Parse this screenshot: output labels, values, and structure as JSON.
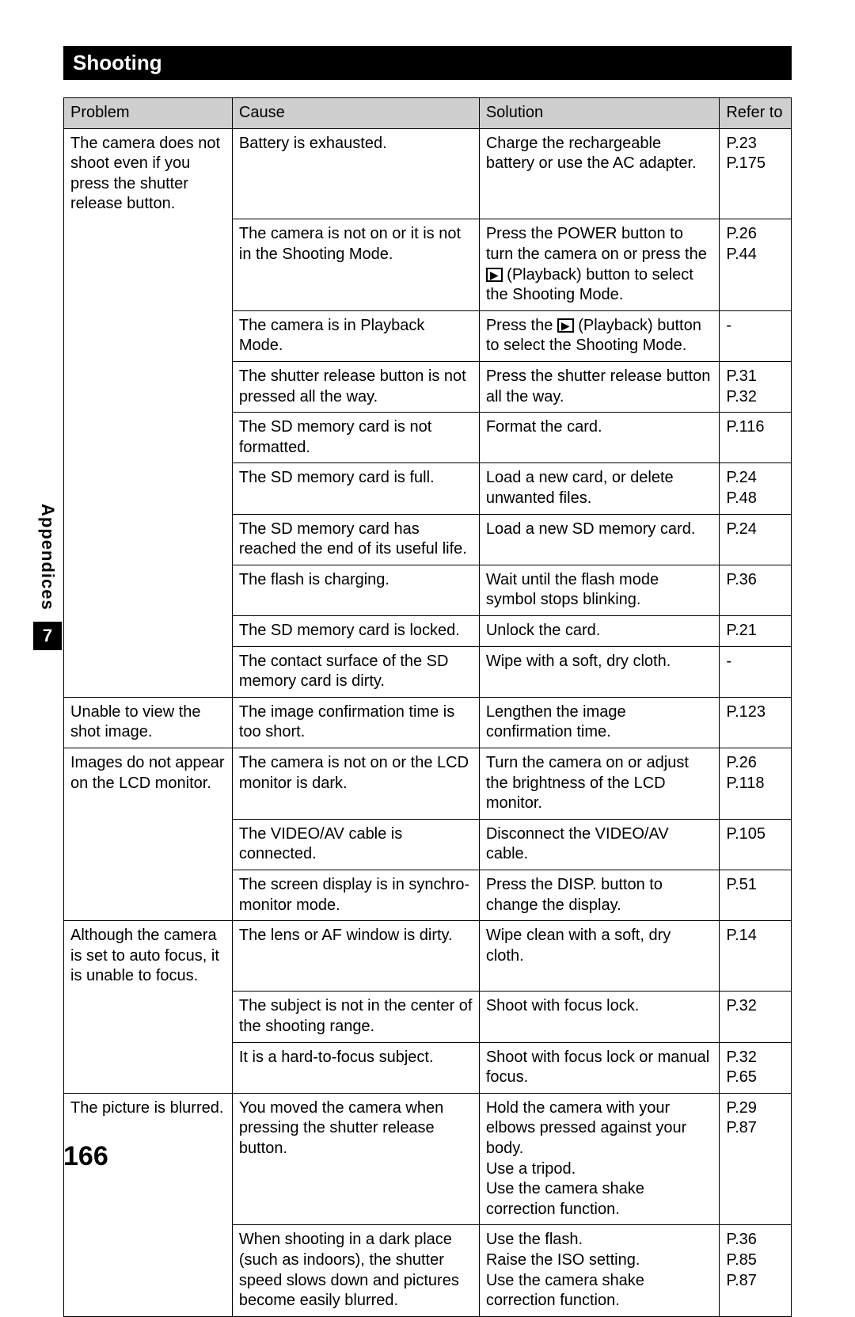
{
  "section_title": "Shooting",
  "side_tab": {
    "label": "Appendices",
    "number": "7"
  },
  "page_number": "166",
  "headers": {
    "problem": "Problem",
    "cause": "Cause",
    "solution": "Solution",
    "refer": "Refer to"
  },
  "col_widths": {
    "c1": 202,
    "c2": 296,
    "c3": 288,
    "c4": 86
  },
  "groups": [
    {
      "problem": "The camera does not shoot even if you press the shutter release button.",
      "rows": [
        {
          "cause": "Battery is exhausted.",
          "solution": "Charge the rechargeable battery or use the AC adapter.",
          "refer": "P.23\nP.175"
        },
        {
          "cause": "The camera is not on or it is not in the Shooting Mode.",
          "solution_pre": "Press the POWER button to turn the camera on or press the ",
          "solution_icon": "▶",
          "solution_post": " (Playback) button to select the Shooting Mode.",
          "refer": "P.26\nP.44"
        },
        {
          "cause": "The camera is in Playback Mode.",
          "solution_pre": "Press the ",
          "solution_icon": "▶",
          "solution_post": " (Playback) button to select the Shooting Mode.",
          "refer": "-"
        },
        {
          "cause": "The shutter release button is not pressed all the way.",
          "solution": "Press the shutter release button all the way.",
          "refer": "P.31\nP.32"
        },
        {
          "cause": "The SD memory card is not formatted.",
          "solution": "Format the card.",
          "refer": "P.116"
        },
        {
          "cause": "The SD memory card is full.",
          "solution": "Load a new card, or delete unwanted files.",
          "refer": "P.24\nP.48"
        },
        {
          "cause": "The SD memory card has reached the end of its useful life.",
          "solution": "Load a new SD memory card.",
          "refer": "P.24"
        },
        {
          "cause": "The flash is charging.",
          "solution": "Wait until the flash mode symbol stops blinking.",
          "refer": "P.36"
        },
        {
          "cause": "The SD memory card is locked.",
          "solution": "Unlock the card.",
          "refer": "P.21"
        },
        {
          "cause": "The contact surface of the SD memory card is dirty.",
          "solution": "Wipe with a soft, dry cloth.",
          "refer": "-"
        }
      ]
    },
    {
      "problem": "Unable to view the shot image.",
      "rows": [
        {
          "cause": "The image confirmation time is too short.",
          "solution": "Lengthen the image confirmation time.",
          "refer": "P.123"
        }
      ]
    },
    {
      "problem": "Images do not appear on the LCD monitor.",
      "rows": [
        {
          "cause": "The camera is not on or the LCD monitor is dark.",
          "solution": "Turn the camera on or adjust the brightness of the LCD monitor.",
          "refer": "P.26\nP.118"
        },
        {
          "cause": "The VIDEO/AV cable is connected.",
          "solution": "Disconnect the VIDEO/AV cable.",
          "refer": "P.105"
        },
        {
          "cause": "The screen display is in synchro-monitor mode.",
          "solution": "Press the DISP. button to change the display.",
          "refer": "P.51"
        }
      ]
    },
    {
      "problem": "Although the camera is set to auto focus, it is unable to focus.",
      "rows": [
        {
          "cause": "The lens or AF window is dirty.",
          "solution": "Wipe clean with a soft, dry cloth.",
          "refer": "P.14"
        },
        {
          "cause": "The subject is not in the center of the shooting range.",
          "solution": "Shoot with focus lock.",
          "refer": "P.32"
        },
        {
          "cause": "It is a hard-to-focus subject.",
          "solution": "Shoot with focus lock or manual focus.",
          "refer": "P.32\nP.65"
        }
      ]
    },
    {
      "problem": "The picture is blurred.",
      "rows": [
        {
          "cause": "You moved the camera when pressing the shutter release button.",
          "solution": "Hold the camera with your elbows pressed against your body.\nUse a tripod.\nUse the camera shake correction function.",
          "refer": "P.29\nP.87"
        },
        {
          "cause": "When shooting in a dark place (such as indoors), the shutter speed slows down and pictures become easily blurred.",
          "solution": "Use the flash.\nRaise the ISO setting.\nUse the camera shake correction function.",
          "refer": "P.36\nP.85\nP.87"
        }
      ]
    }
  ]
}
